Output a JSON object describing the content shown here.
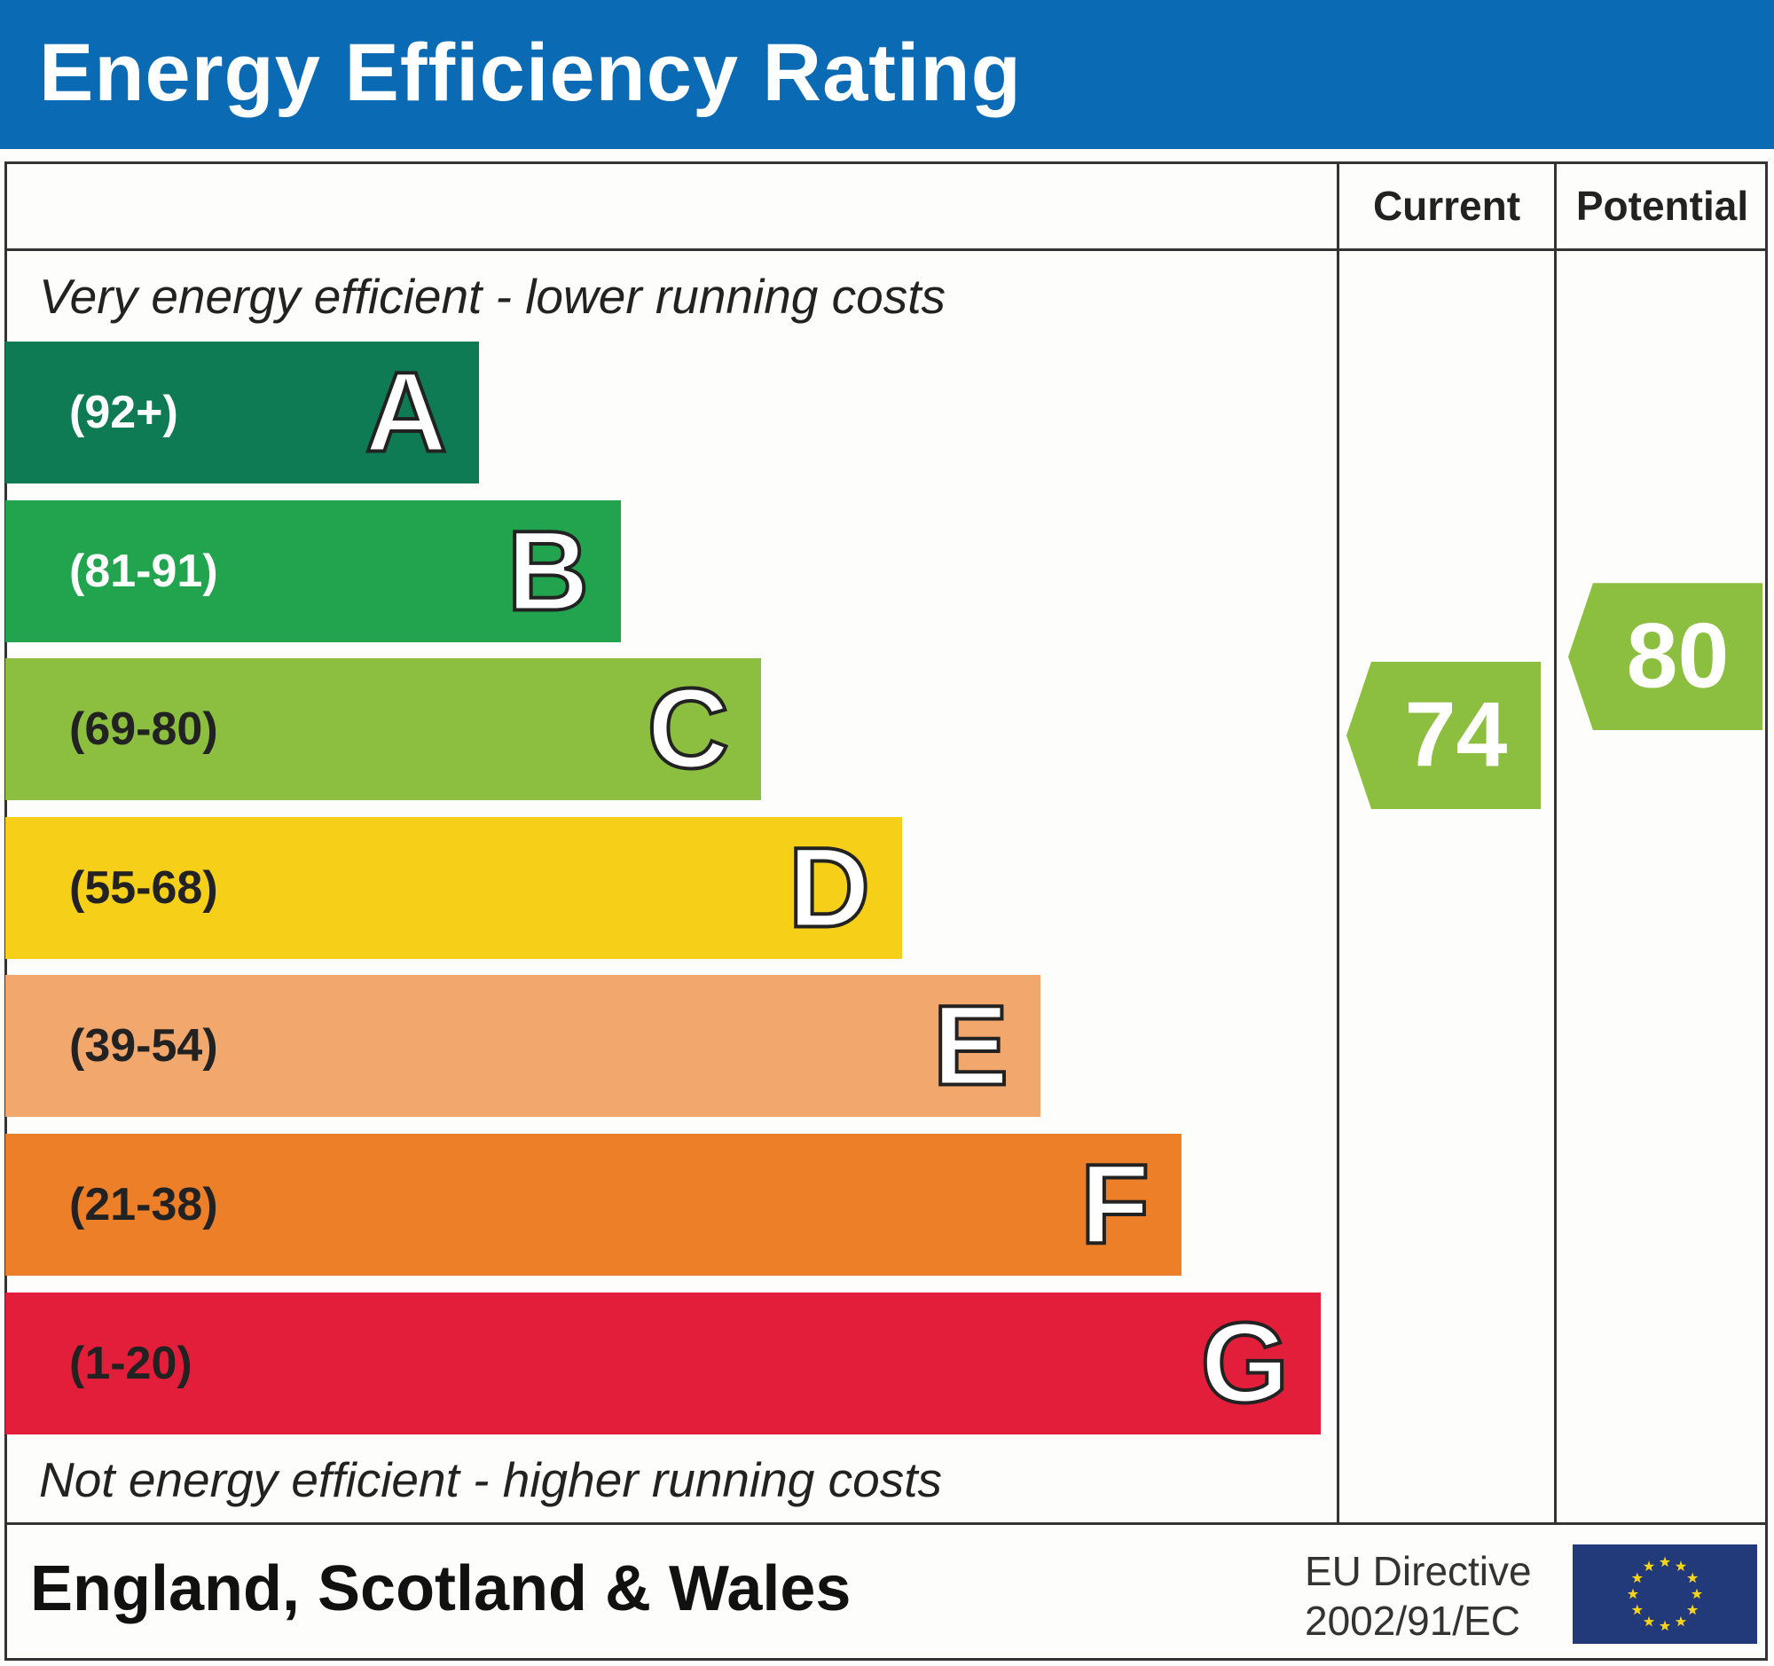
{
  "header": {
    "title": "Energy Efficiency Rating"
  },
  "columns": {
    "current": "Current",
    "potential": "Potential"
  },
  "notes": {
    "top": "Very energy efficient - lower running costs",
    "bottom": "Not energy efficient - higher running costs"
  },
  "footer": {
    "region": "England, Scotland & Wales",
    "directive_line1": "EU Directive",
    "directive_line2": "2002/91/EC",
    "flag_icon": "eu-flag-icon"
  },
  "chart_data": {
    "type": "bar",
    "title": "Energy Efficiency Rating",
    "bands": [
      {
        "letter": "A",
        "range": "(92+)",
        "color": "#0f7b55",
        "text_color": "#ffffff"
      },
      {
        "letter": "B",
        "range": "(81-91)",
        "color": "#22a44f",
        "text_color": "#ffffff"
      },
      {
        "letter": "C",
        "range": "(69-80)",
        "color": "#8cbe3f",
        "text_color": "#222222"
      },
      {
        "letter": "D",
        "range": "(55-68)",
        "color": "#f6cf18",
        "text_color": "#222222"
      },
      {
        "letter": "E",
        "range": "(39-54)",
        "color": "#f2a86d",
        "text_color": "#222222"
      },
      {
        "letter": "F",
        "range": "(21-38)",
        "color": "#ec7f27",
        "text_color": "#222222"
      },
      {
        "letter": "G",
        "range": "(1-20)",
        "color": "#e21e3b",
        "text_color": "#222222"
      }
    ],
    "current": {
      "value": "74",
      "band": "C",
      "color": "#8cbe3f"
    },
    "potential": {
      "value": "80",
      "band": "C",
      "color": "#8cbe3f"
    }
  }
}
